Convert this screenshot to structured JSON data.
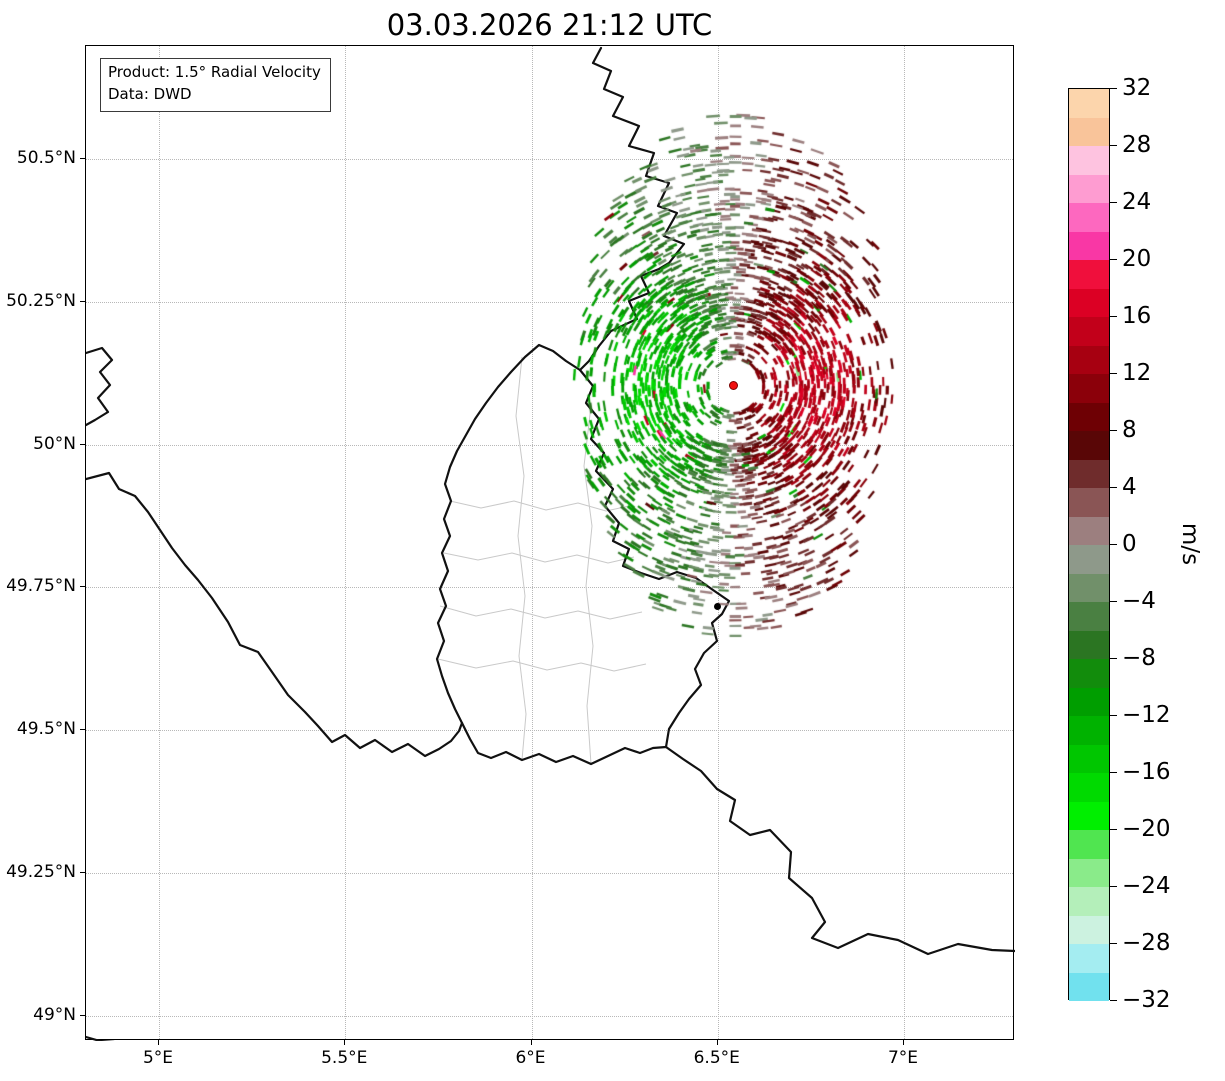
{
  "title": "03.03.2026 21:12 UTC",
  "annotation": {
    "line1": "Product: 1.5° Radial Velocity",
    "line2": "Data: DWD"
  },
  "chart_data": {
    "type": "heatmap",
    "subtype": "doppler-radar-radial-velocity-ppi-on-map",
    "title": "03.03.2026 21:12 UTC",
    "product": "1.5° Radial Velocity",
    "data_source": "DWD",
    "units": "m/s",
    "x_axis": {
      "tick_labels": [
        "5°E",
        "5.5°E",
        "6°E",
        "6.5°E",
        "7°E"
      ],
      "tick_values": [
        5.0,
        5.5,
        6.0,
        6.5,
        7.0
      ],
      "range": [
        4.804,
        7.298
      ]
    },
    "y_axis": {
      "tick_labels": [
        "50.5°N",
        "50.25°N",
        "50°N",
        "49.75°N",
        "49.5°N",
        "49.25°N",
        "49°N"
      ],
      "tick_values": [
        50.5,
        50.25,
        50.0,
        49.75,
        49.5,
        49.25,
        49.0
      ],
      "range": [
        48.956,
        50.698
      ]
    },
    "grid": true,
    "colorbar": {
      "label": "m/s",
      "min": -32,
      "max": 32,
      "tick_labels": [
        "32",
        "28",
        "24",
        "20",
        "16",
        "12",
        "8",
        "4",
        "0",
        "−4",
        "−8",
        "−12",
        "−16",
        "−20",
        "−24",
        "−28",
        "−32"
      ],
      "tick_values": [
        32,
        28,
        24,
        20,
        16,
        12,
        8,
        4,
        0,
        -4,
        -8,
        -12,
        -16,
        -20,
        -24,
        -28,
        -32
      ],
      "segment_step": 2,
      "colors_top_to_bottom": [
        "#fcd5ac",
        "#f9c49a",
        "#fec3e0",
        "#fe9cd1",
        "#fd68bf",
        "#f937a5",
        "#f00f3c",
        "#dc0024",
        "#c2001a",
        "#a70011",
        "#8b000a",
        "#6e0004",
        "#590606",
        "#6f2c2c",
        "#8a5555",
        "#9c7f7f",
        "#8e998a",
        "#71906a",
        "#4a8042",
        "#2b7522",
        "#128c0c",
        "#009e00",
        "#00b200",
        "#00c600",
        "#00da00",
        "#00ef00",
        "#50e550",
        "#8aeb8a",
        "#b4efba",
        "#ccf2e0",
        "#a4edf1",
        "#71e1ee"
      ]
    },
    "radar_site": {
      "lon": 6.543,
      "lat": 50.103,
      "marker_color": "#f01010",
      "pattern": "green (negative, toward radar) west of site; dark red (positive, away) east of site",
      "seed": 20260303
    },
    "city_marker": {
      "lon": 6.498,
      "lat": 49.716,
      "color": "#000000"
    }
  }
}
